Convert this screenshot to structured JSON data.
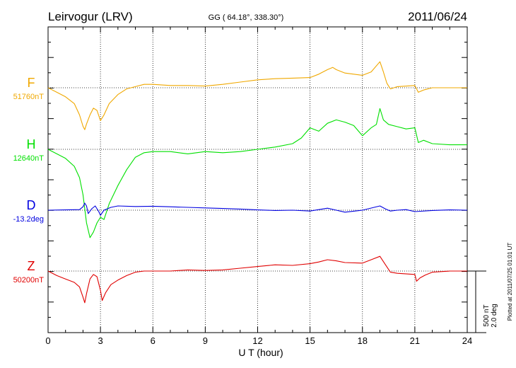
{
  "header": {
    "station": "Leirvogur (LRV)",
    "coords": "GG ( 64.18°, 338.30°)",
    "date": "2011/06/24"
  },
  "side_note": "Plotted at 2011/07/25 01:01 UT",
  "scale_bar": {
    "line1": "500 nT",
    "line2": "2.0 deg"
  },
  "chart_data": {
    "type": "line",
    "xlabel": "U T (hour)",
    "xlim": [
      0,
      24
    ],
    "x_ticks": [
      "0",
      "3",
      "6",
      "9",
      "12",
      "15",
      "18",
      "21",
      "24"
    ],
    "grid": true,
    "series": [
      {
        "name": "F",
        "baseline_label": "51760nT",
        "color": "#f0a800",
        "x": [
          0,
          0.5,
          1,
          1.5,
          1.8,
          2,
          2.1,
          2.2,
          2.4,
          2.6,
          2.8,
          3,
          3.2,
          3.5,
          4,
          4.5,
          5,
          5.5,
          6,
          7,
          8,
          9,
          10,
          11,
          12,
          13,
          14,
          15,
          15.5,
          16,
          16.3,
          16.5,
          17,
          18,
          18.5,
          19,
          19.2,
          19.4,
          19.6,
          20,
          21,
          21.2,
          21.5,
          22,
          23,
          24
        ],
        "y": [
          51760,
          51720,
          51680,
          51620,
          51520,
          51420,
          51390,
          51440,
          51520,
          51580,
          51560,
          51470,
          51520,
          51620,
          51700,
          51750,
          51770,
          51790,
          51790,
          51780,
          51780,
          51775,
          51790,
          51810,
          51830,
          51840,
          51845,
          51850,
          51880,
          51920,
          51940,
          51920,
          51890,
          51870,
          51900,
          51990,
          51900,
          51800,
          51750,
          51770,
          51780,
          51720,
          51740,
          51760,
          51760,
          51760
        ]
      },
      {
        "name": "H",
        "baseline_label": "12640nT",
        "color": "#00e000",
        "x": [
          0,
          0.5,
          1,
          1.5,
          1.8,
          2,
          2.2,
          2.4,
          2.6,
          2.8,
          3,
          3.2,
          3.5,
          4,
          4.5,
          5,
          5.5,
          6,
          7,
          8,
          9,
          10,
          11,
          12,
          13,
          14,
          14.5,
          15,
          15.5,
          16,
          16.5,
          17,
          17.5,
          18,
          18.5,
          18.8,
          19,
          19.2,
          19.5,
          20,
          20.5,
          21,
          21.2,
          21.5,
          22,
          23,
          24
        ],
        "y": [
          12600,
          12560,
          12520,
          12450,
          12350,
          12200,
          11950,
          11820,
          11870,
          11950,
          12000,
          11980,
          12120,
          12280,
          12420,
          12530,
          12570,
          12580,
          12580,
          12560,
          12580,
          12570,
          12580,
          12600,
          12620,
          12650,
          12700,
          12790,
          12760,
          12830,
          12860,
          12840,
          12810,
          12720,
          12790,
          12820,
          12960,
          12860,
          12820,
          12800,
          12780,
          12790,
          12660,
          12680,
          12650,
          12640,
          12640
        ]
      },
      {
        "name": "D",
        "baseline_label": "-13.2deg",
        "color": "#0000e0",
        "x": [
          0,
          1,
          1.8,
          2,
          2.1,
          2.2,
          2.3,
          2.5,
          2.7,
          2.9,
          3,
          3.2,
          3.6,
          4,
          5,
          6,
          7,
          8,
          9,
          10,
          11,
          12,
          13,
          14,
          15,
          16,
          16.5,
          17,
          18,
          19,
          19.3,
          19.6,
          20,
          20.5,
          21,
          22,
          23,
          24
        ],
        "y": [
          -13.2,
          -13.19,
          -13.18,
          -13.08,
          -12.95,
          -13.05,
          -13.32,
          -13.15,
          -13.05,
          -13.25,
          -13.38,
          -13.2,
          -13.1,
          -13.05,
          -13.07,
          -13.06,
          -13.08,
          -13.1,
          -13.12,
          -13.14,
          -13.16,
          -13.19,
          -13.21,
          -13.2,
          -13.23,
          -13.13,
          -13.2,
          -13.27,
          -13.2,
          -13.05,
          -13.15,
          -13.23,
          -13.2,
          -13.18,
          -13.25,
          -13.21,
          -13.19,
          -13.2
        ]
      },
      {
        "name": "Z",
        "baseline_label": "50200nT",
        "color": "#e00000",
        "x": [
          0,
          0.5,
          1,
          1.5,
          1.8,
          2,
          2.1,
          2.2,
          2.4,
          2.6,
          2.8,
          3,
          3.1,
          3.3,
          3.6,
          4,
          4.5,
          5,
          5.5,
          6,
          7,
          8,
          9,
          10,
          11,
          12,
          13,
          14,
          15,
          15.5,
          16,
          16.5,
          17,
          18,
          18.5,
          19,
          19.3,
          19.6,
          20,
          21,
          21.1,
          21.3,
          21.6,
          22,
          23,
          24
        ],
        "y": [
          50200,
          50160,
          50130,
          50100,
          50060,
          49970,
          49920,
          50000,
          50130,
          50170,
          50150,
          50030,
          49940,
          50010,
          50080,
          50120,
          50160,
          50190,
          50200,
          50200,
          50200,
          50210,
          50205,
          50210,
          50225,
          50240,
          50255,
          50250,
          50265,
          50280,
          50300,
          50290,
          50275,
          50270,
          50300,
          50330,
          50260,
          50190,
          50180,
          50170,
          50110,
          50140,
          50165,
          50190,
          50200,
          50200
        ]
      }
    ]
  }
}
